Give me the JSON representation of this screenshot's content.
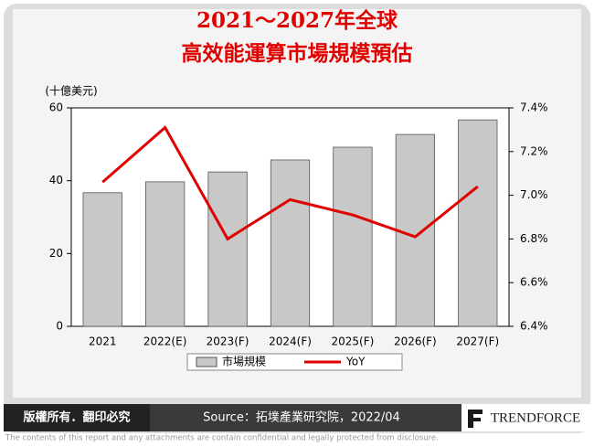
{
  "chart_data": {
    "type": "bar-line",
    "title": [
      "2021～2027年全球",
      "高效能運算市場規模預估"
    ],
    "y_axis_label": "(十億美元)",
    "categories": [
      "2021",
      "2022(E)",
      "2023(F)",
      "2024(F)",
      "2025(F)",
      "2026(F)",
      "2027(F)"
    ],
    "series": [
      {
        "name": "市場規模",
        "type": "bar",
        "color": "#c8c8c8",
        "values": [
          36.7,
          39.7,
          42.4,
          45.7,
          49.2,
          52.7,
          56.7
        ]
      },
      {
        "name": "YoY",
        "type": "line",
        "axis": "y2",
        "color": "#e00000",
        "values": [
          7.06,
          7.31,
          6.8,
          6.98,
          6.91,
          6.81,
          7.04
        ]
      }
    ],
    "ylim": [
      0,
      60
    ],
    "yticks": [
      0,
      20,
      40,
      60
    ],
    "y2lim": [
      6.4,
      7.4
    ],
    "y2ticks": [
      {
        "value": 6.4,
        "label": "6.4%"
      },
      {
        "value": 6.6,
        "label": "6.6%"
      },
      {
        "value": 6.8,
        "label": "6.8%"
      },
      {
        "value": 7.0,
        "label": "7.0%"
      },
      {
        "value": 7.2,
        "label": "7.2%"
      },
      {
        "value": 7.4,
        "label": "7.4%"
      }
    ],
    "legend": "bottom"
  },
  "footer": {
    "rights": "版權所有．翻印必究",
    "source": "Source：拓墣產業研究院，2022/04",
    "brand": "TRENDFORCE",
    "disclaimer": "The contents of this report and any attachments are contain confidential and legally protected from disclosure."
  }
}
